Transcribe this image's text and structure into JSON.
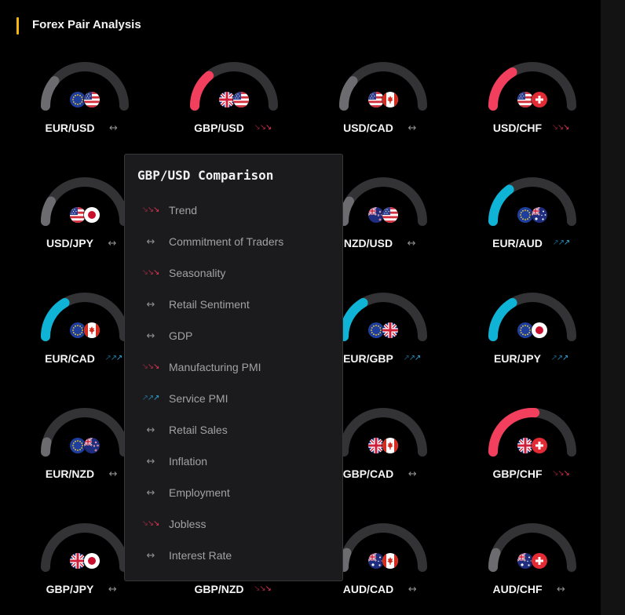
{
  "header": {
    "title": "Forex Pair Analysis"
  },
  "colors": {
    "accent": "#f5b50a",
    "bearish": "#f23f5d",
    "bullish": "#0fb3d6",
    "neutral": "#6c6c70",
    "track": "#333336",
    "bearish_arrow": "#e8365a",
    "bullish_arrow": "#2ba7dc",
    "neutral_arrow": "#8e8e8e"
  },
  "pairs": [
    {
      "label": "EUR/USD",
      "trend_icon": "neutral-arrows-icon",
      "gauge_fill": 0.22,
      "flags": [
        "eu-flag-icon",
        "us-flag-icon"
      ]
    },
    {
      "label": "GBP/USD",
      "trend_icon": "bearish-arrows-icon",
      "gauge_fill": 0.28,
      "flags": [
        "gb-flag-icon",
        "us-flag-icon"
      ]
    },
    {
      "label": "USD/CAD",
      "trend_icon": "neutral-arrows-icon",
      "gauge_fill": 0.22,
      "flags": [
        "us-flag-icon",
        "ca-flag-icon"
      ]
    },
    {
      "label": "USD/CHF",
      "trend_icon": "bearish-arrows-icon",
      "gauge_fill": 0.33,
      "flags": [
        "us-flag-icon",
        "ch-flag-icon"
      ]
    },
    {
      "label": "USD/JPY",
      "trend_icon": "neutral-arrows-icon",
      "gauge_fill": 0.17,
      "flags": [
        "us-flag-icon",
        "jp-flag-icon"
      ]
    },
    {
      "label": "NZD/USD",
      "trend_icon": "neutral-arrows-icon",
      "gauge_fill": 0.17,
      "flags": [
        "nz-flag-icon",
        "us-flag-icon"
      ]
    },
    {
      "label": "EUR/AUD",
      "trend_icon": "bullish-arrows-icon",
      "gauge_fill": 0.3,
      "flags": [
        "eu-flag-icon",
        "au-flag-icon"
      ]
    },
    {
      "label": "EUR/CAD",
      "trend_icon": "bullish-arrows-icon",
      "gauge_fill": 0.33,
      "flags": [
        "eu-flag-icon",
        "ca-flag-icon"
      ]
    },
    {
      "label": "EUR/GBP",
      "trend_icon": "bullish-arrows-icon",
      "gauge_fill": 0.33,
      "flags": [
        "eu-flag-icon",
        "gb-flag-icon"
      ]
    },
    {
      "label": "EUR/JPY",
      "trend_icon": "bullish-arrows-icon",
      "gauge_fill": 0.33,
      "flags": [
        "eu-flag-icon",
        "jp-flag-icon"
      ]
    },
    {
      "label": "EUR/NZD",
      "trend_icon": "neutral-arrows-icon",
      "gauge_fill": 0.08,
      "flags": [
        "eu-flag-icon",
        "nz-flag-icon"
      ]
    },
    {
      "label": "GBP/CAD",
      "trend_icon": "neutral-arrows-icon",
      "gauge_fill": 0.0,
      "flags": [
        "gb-flag-icon",
        "ca-flag-icon"
      ]
    },
    {
      "label": "GBP/CHF",
      "trend_icon": "bearish-arrows-icon",
      "gauge_fill": 0.52,
      "flags": [
        "gb-flag-icon",
        "ch-flag-icon"
      ]
    },
    {
      "label": "GBP/JPY",
      "trend_icon": "neutral-arrows-icon",
      "gauge_fill": 0.0,
      "flags": [
        "gb-flag-icon",
        "jp-flag-icon"
      ]
    },
    {
      "label": "GBP/NZD",
      "trend_icon": "bearish-arrows-icon"
    },
    {
      "label": "AUD/CAD",
      "trend_icon": "neutral-arrows-icon",
      "gauge_fill": 0.12,
      "flags": [
        "au-flag-icon",
        "ca-flag-icon"
      ]
    },
    {
      "label": "AUD/CHF",
      "trend_icon": "neutral-arrows-icon",
      "gauge_fill": 0.12,
      "flags": [
        "au-flag-icon",
        "ch-flag-icon"
      ]
    }
  ],
  "tooltip": {
    "title": "GBP/USD Comparison",
    "rows": [
      {
        "label": "Trend",
        "trend_icon": "bearish-arrows-icon"
      },
      {
        "label": "Commitment of Traders",
        "trend_icon": "neutral-arrows-icon"
      },
      {
        "label": "Seasonality",
        "trend_icon": "bearish-arrows-icon"
      },
      {
        "label": "Retail Sentiment",
        "trend_icon": "neutral-arrows-icon"
      },
      {
        "label": "GDP",
        "trend_icon": "neutral-arrows-icon"
      },
      {
        "label": "Manufacturing PMI",
        "trend_icon": "bearish-arrows-icon"
      },
      {
        "label": "Service PMI",
        "trend_icon": "bullish-arrows-icon"
      },
      {
        "label": "Retail Sales",
        "trend_icon": "neutral-arrows-icon"
      },
      {
        "label": "Inflation",
        "trend_icon": "neutral-arrows-icon"
      },
      {
        "label": "Employment",
        "trend_icon": "neutral-arrows-icon"
      },
      {
        "label": "Jobless",
        "trend_icon": "bearish-arrows-icon"
      },
      {
        "label": "Interest Rate",
        "trend_icon": "neutral-arrows-icon"
      }
    ]
  }
}
